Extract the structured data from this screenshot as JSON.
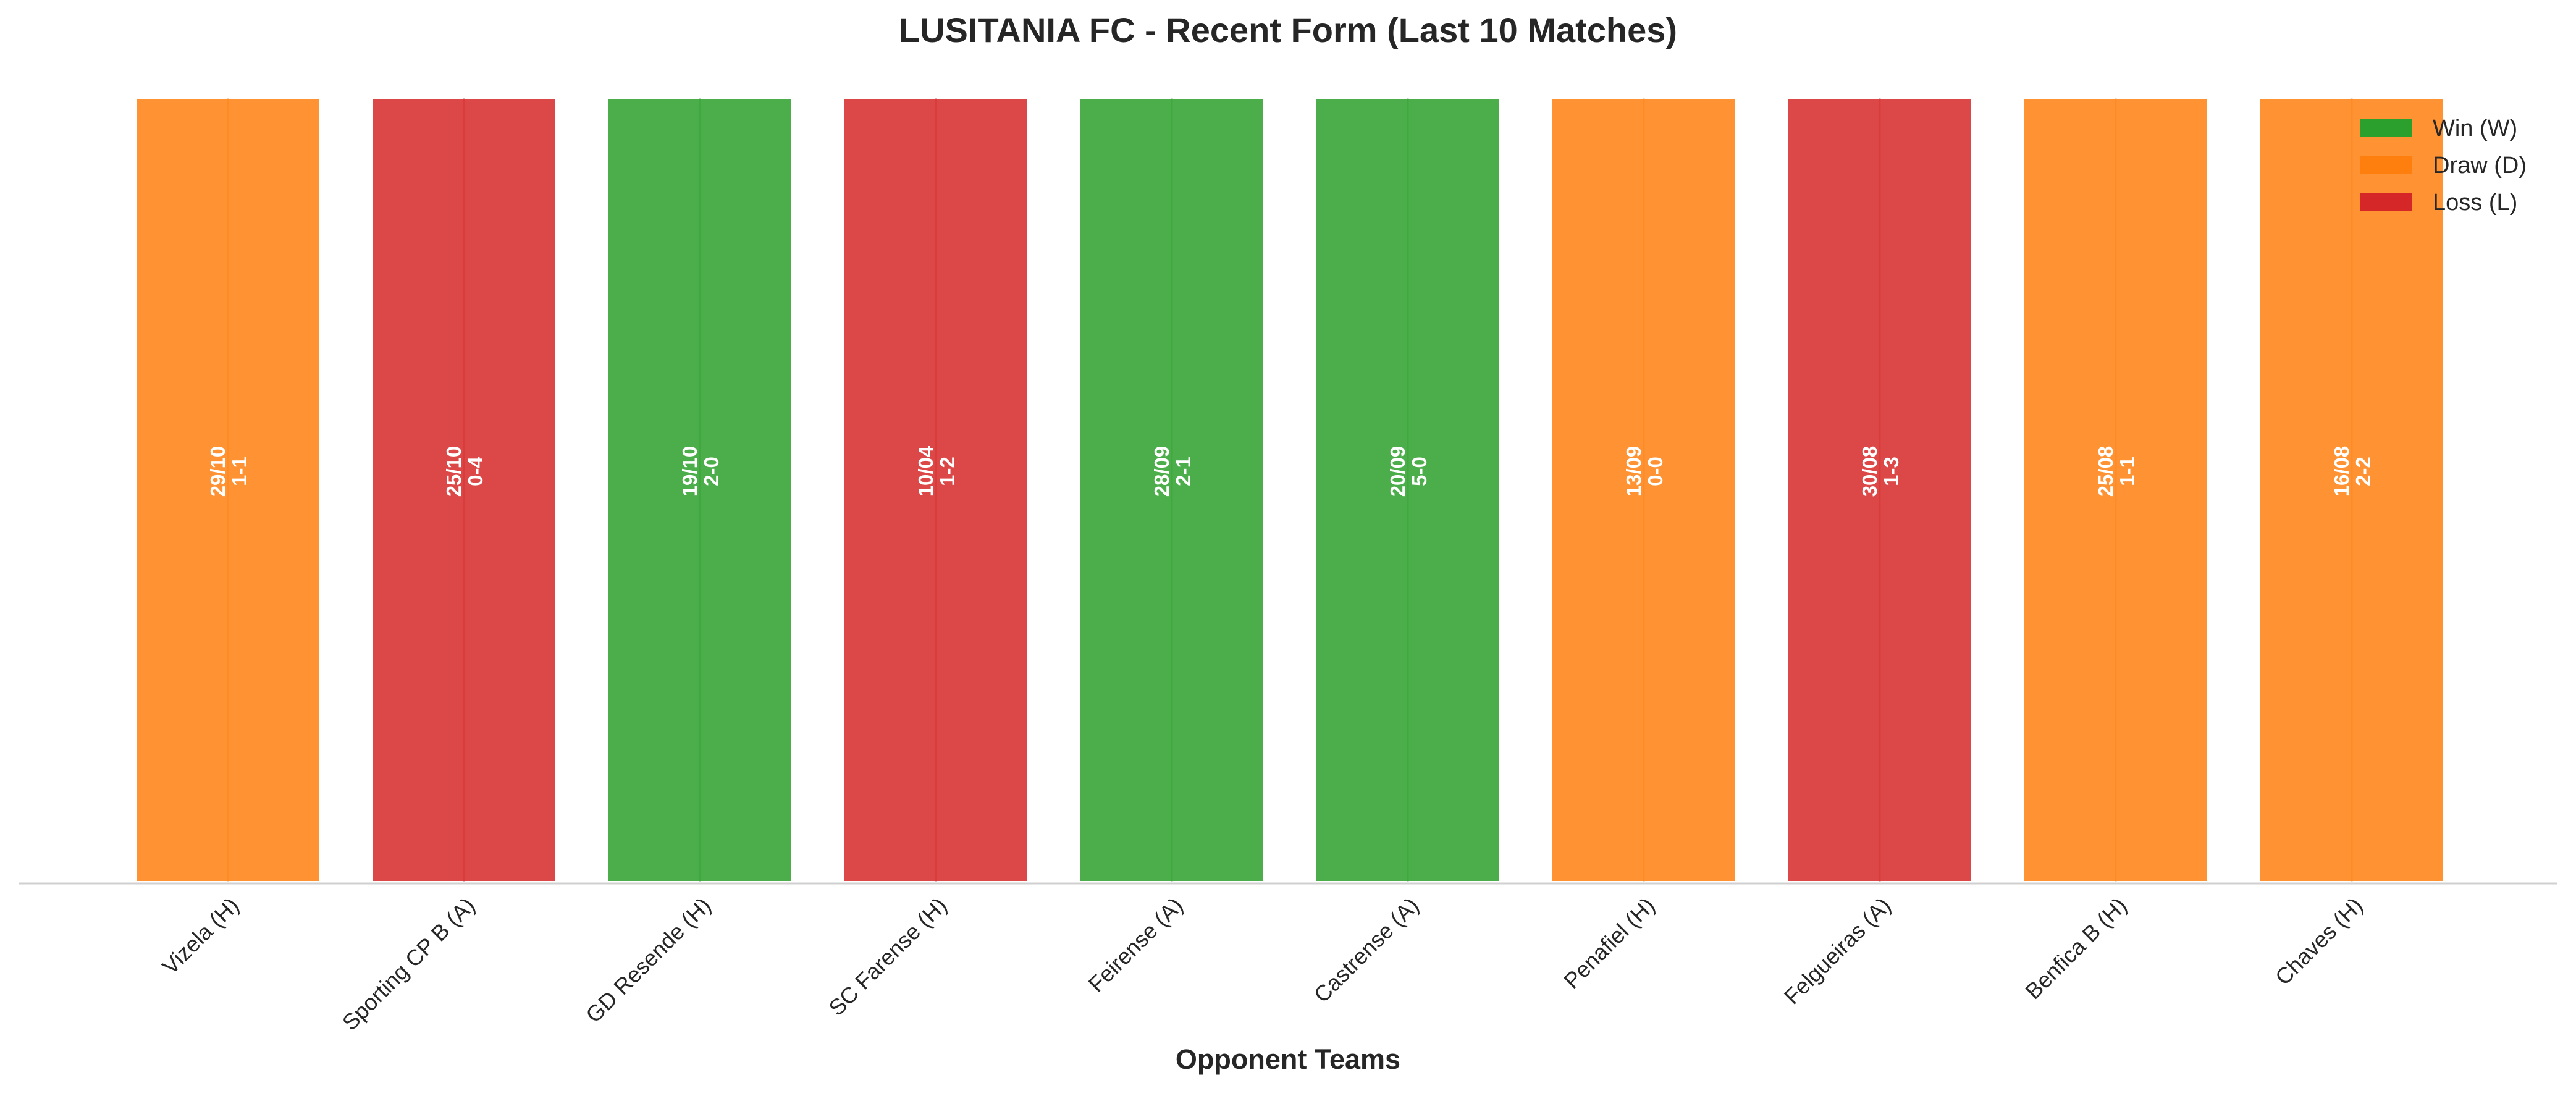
{
  "chart_data": {
    "type": "bar",
    "title": "LUSITANIA FC - Recent Form (Last 10 Matches)",
    "xlabel": "Opponent Teams",
    "ylabel": "",
    "grid": false,
    "legend_position": "top-right",
    "categories": [
      "Vizela (H)",
      "Sporting CP B (A)",
      "GD Resende (H)",
      "SC Farense (H)",
      "Feirense (A)",
      "Castrense (A)",
      "Penafiel (H)",
      "Felgueiras (A)",
      "Benfica B (H)",
      "Chaves (H)"
    ],
    "values": [
      1,
      1,
      1,
      1,
      1,
      1,
      1,
      1,
      1,
      1
    ],
    "results": [
      "D",
      "L",
      "W",
      "L",
      "W",
      "W",
      "D",
      "L",
      "D",
      "D"
    ],
    "dates": [
      "29/10",
      "25/10",
      "19/10",
      "10/04",
      "28/09",
      "20/09",
      "13/09",
      "30/08",
      "25/08",
      "16/08"
    ],
    "scores": [
      "1-1",
      "0-4",
      "2-0",
      "1-2",
      "2-1",
      "5-0",
      "0-0",
      "1-3",
      "1-1",
      "2-2"
    ],
    "legend": [
      {
        "key": "W",
        "label": "Win (W)",
        "color": "#2ca02c"
      },
      {
        "key": "D",
        "label": "Draw (D)",
        "color": "#ff7f0e"
      },
      {
        "key": "L",
        "label": "Loss (L)",
        "color": "#d62728"
      }
    ]
  }
}
